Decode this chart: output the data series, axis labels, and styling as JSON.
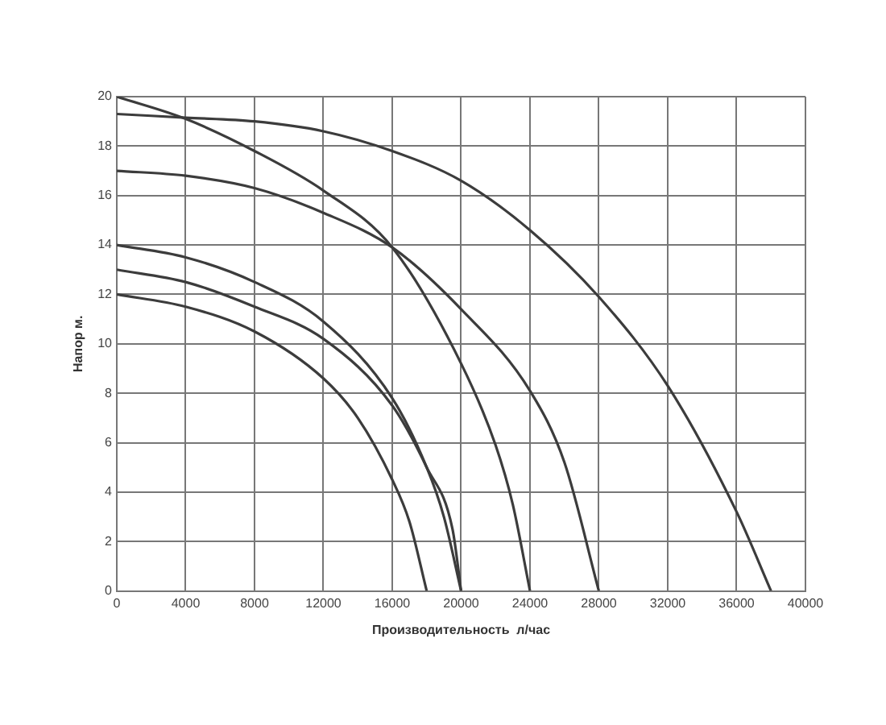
{
  "chart_data": {
    "type": "line",
    "xlabel": "Производительность  л/час",
    "ylabel": "Напор м.",
    "xlim": [
      0,
      40000
    ],
    "ylim": [
      0,
      20
    ],
    "xticks": [
      0,
      4000,
      8000,
      12000,
      16000,
      20000,
      24000,
      28000,
      32000,
      36000,
      40000
    ],
    "yticks": [
      0,
      2,
      4,
      6,
      8,
      10,
      12,
      14,
      16,
      18,
      20
    ],
    "grid": true,
    "legend": false,
    "marker": "none",
    "line_style": "solid",
    "series": [
      {
        "color": "#3c3c3c",
        "x": [
          0,
          4000,
          8000,
          12000,
          14000,
          16000,
          17000,
          18000
        ],
        "values": [
          12,
          11.5,
          10.5,
          8.6,
          7,
          4.5,
          2.8,
          0
        ]
      },
      {
        "color": "#3c3c3c",
        "x": [
          0,
          4000,
          8000,
          12000,
          16000,
          18000,
          19500,
          20000
        ],
        "values": [
          13,
          12.5,
          11.5,
          10.2,
          7.5,
          5,
          2.5,
          0
        ]
      },
      {
        "color": "#3c3c3c",
        "x": [
          0,
          4000,
          8000,
          12000,
          16000,
          18000,
          19000,
          20000
        ],
        "values": [
          14,
          13.5,
          12.5,
          10.9,
          7.8,
          5,
          3,
          0
        ]
      },
      {
        "color": "#3c3c3c",
        "x": [
          0,
          4000,
          8000,
          12000,
          16000,
          20000,
          22000,
          23000,
          24000
        ],
        "values": [
          20,
          19.1,
          17.8,
          16.2,
          13.9,
          9.2,
          5.9,
          3.5,
          0
        ]
      },
      {
        "color": "#3c3c3c",
        "x": [
          0,
          4000,
          8000,
          12000,
          16000,
          20000,
          24000,
          26000,
          28000
        ],
        "values": [
          17,
          16.8,
          16.3,
          15.3,
          13.9,
          11.4,
          8.1,
          5.2,
          0
        ]
      },
      {
        "color": "#3c3c3c",
        "x": [
          0,
          4000,
          8000,
          12000,
          16000,
          20000,
          24000,
          28000,
          32000,
          36000,
          38000
        ],
        "values": [
          19.3,
          19.15,
          19,
          18.6,
          17.8,
          16.6,
          14.6,
          11.9,
          8.3,
          3.2,
          0
        ]
      }
    ]
  }
}
